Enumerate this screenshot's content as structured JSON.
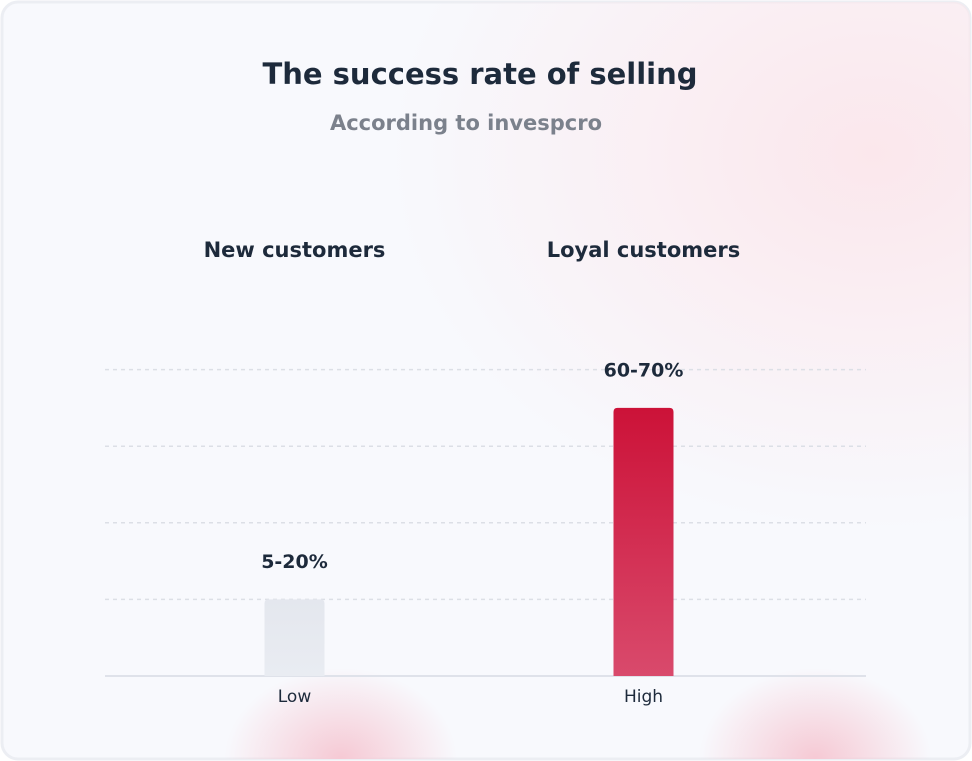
{
  "chart_data": {
    "type": "bar",
    "title": "The success rate of selling",
    "subtitle": "According to invespcro",
    "groups": [
      "New customers",
      "Loyal customers"
    ],
    "categories": [
      "Low",
      "High"
    ],
    "values": [
      20,
      70
    ],
    "value_labels": [
      "5-20%",
      "60-70%"
    ],
    "colors": [
      "#e4e7ee",
      "#cc1238"
    ],
    "ylim": [
      0,
      100
    ],
    "yticks": [
      20,
      40,
      60,
      80
    ],
    "grid": true
  }
}
